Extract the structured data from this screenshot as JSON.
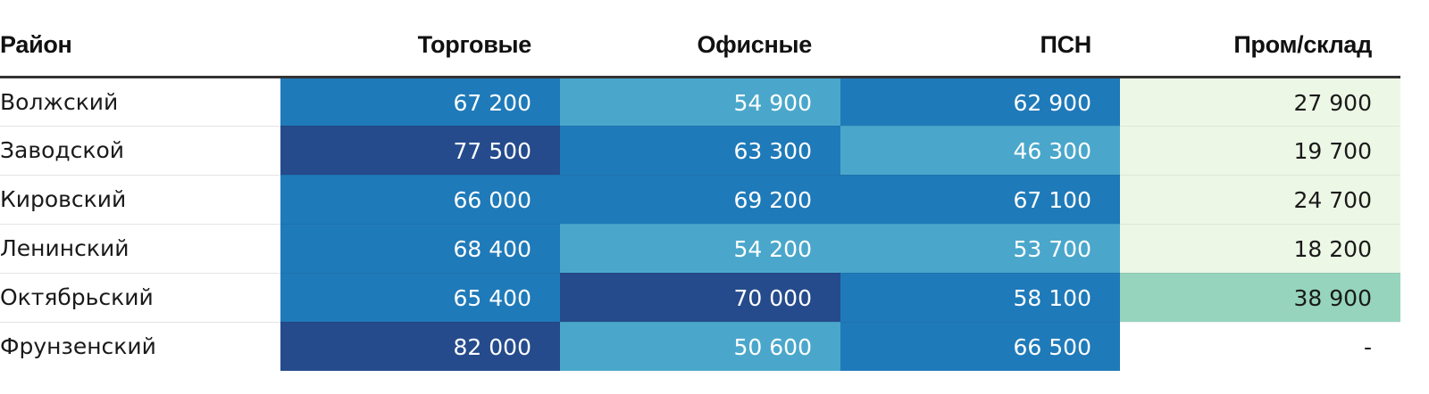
{
  "chart_data": {
    "type": "table",
    "columns": [
      "Район",
      "Торговые",
      "Офисные",
      "ПСН",
      "Пром/склад"
    ],
    "rows": [
      {
        "name": "Волжский",
        "values": [
          "67 200",
          "54 900",
          "62 900",
          "27 900"
        ]
      },
      {
        "name": "Заводской",
        "values": [
          "77 500",
          "63 300",
          "46 300",
          "19 700"
        ]
      },
      {
        "name": "Кировский",
        "values": [
          "66 000",
          "69 200",
          "67 100",
          "24 700"
        ]
      },
      {
        "name": "Ленинский",
        "values": [
          "68 400",
          "54 200",
          "53 700",
          "18 200"
        ]
      },
      {
        "name": "Октябрьский",
        "values": [
          "65 400",
          "70 000",
          "58 100",
          "38 900"
        ]
      },
      {
        "name": "Фрунзенский",
        "values": [
          "82 000",
          "50 600",
          "66 500",
          "-"
        ]
      }
    ]
  },
  "colors": {
    "blue_darkest": "#254b8c",
    "blue_mid": "#1f7ab9",
    "blue_light": "#4aa7cb",
    "green_light": "#edf7e6",
    "green_mid": "#96d4bd",
    "text_on_dark": "#ffffff",
    "text_on_light": "#1a1a1a"
  }
}
